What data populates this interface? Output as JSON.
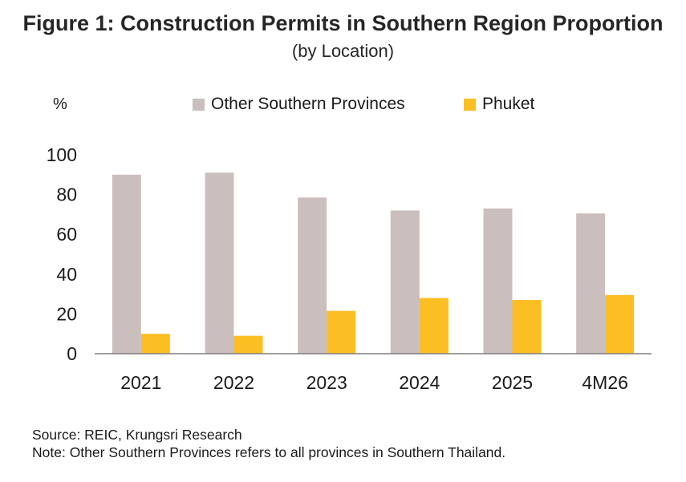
{
  "title": "Figure 1: Construction Permits in Southern Region Proportion",
  "subtitle": "(by Location)",
  "source": "Source: REIC, Krungsri Research",
  "note": "Note: Other Southern Provinces refers to all provinces in Southern Thailand.",
  "chart_data": {
    "type": "bar",
    "ylabel": "%",
    "ylim": [
      0,
      100
    ],
    "yticks": [
      0,
      20,
      40,
      60,
      80,
      100
    ],
    "grid": false,
    "legend": "top",
    "categories": [
      "2021",
      "2022",
      "2023",
      "2024",
      "2025",
      "4M26"
    ],
    "series": [
      {
        "name": "Other Southern Provinces",
        "color": "#cbbfbe",
        "values": [
          90,
          91,
          78.5,
          72,
          73,
          70.5
        ]
      },
      {
        "name": "Phuket",
        "color": "#fbbf24",
        "values": [
          10,
          9,
          21.5,
          28,
          27,
          29.5
        ]
      }
    ]
  }
}
